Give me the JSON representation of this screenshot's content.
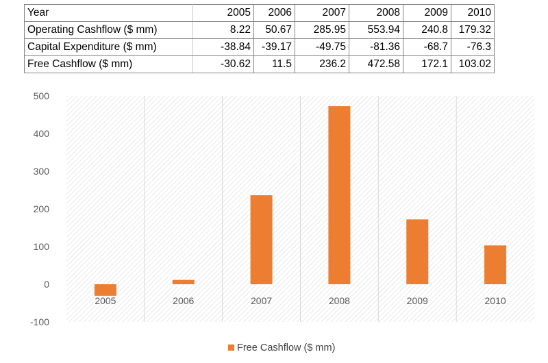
{
  "table": {
    "header": [
      "Year",
      "2005",
      "2006",
      "2007",
      "2008",
      "2009",
      "2010"
    ],
    "rows": [
      {
        "label": "Operating Cashflow ($ mm)",
        "values": [
          "8.22",
          "50.67",
          "285.95",
          "553.94",
          "240.8",
          "179.32"
        ]
      },
      {
        "label": "Capital Expenditure ($ mm)",
        "values": [
          "-38.84",
          "-39.17",
          "-49.75",
          "-81.36",
          "-68.7",
          "-76.3"
        ]
      },
      {
        "label": "Free Cashflow ($ mm)",
        "values": [
          "-30.62",
          "11.5",
          "236.2",
          "472.58",
          "172.1",
          "103.02"
        ]
      }
    ]
  },
  "chart_data": {
    "type": "bar",
    "categories": [
      "2005",
      "2006",
      "2007",
      "2008",
      "2009",
      "2010"
    ],
    "series": [
      {
        "name": "Free Cashflow ($ mm)",
        "values": [
          -30.62,
          11.5,
          236.2,
          472.58,
          172.1,
          103.02
        ],
        "color": "#ED7D31"
      }
    ],
    "yticks": [
      "500",
      "400",
      "300",
      "200",
      "100",
      "0",
      "-100"
    ],
    "ylim": [
      -100,
      500
    ],
    "grid": "vertical",
    "legend": "bottom"
  }
}
